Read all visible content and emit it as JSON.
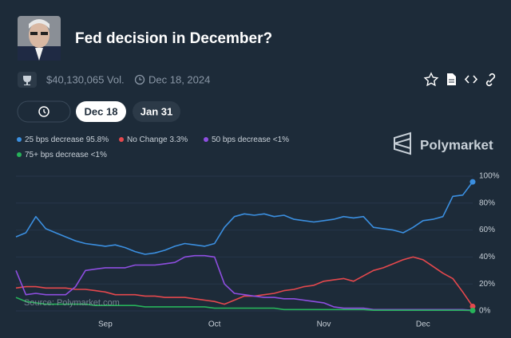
{
  "header": {
    "title": "Fed decision in December?",
    "volume": "$40,130,065 Vol.",
    "end_date": "Dec 18, 2024"
  },
  "tabs": [
    "Dec 18",
    "Jan 31"
  ],
  "brand": "Polymarket",
  "source": "Source: Polymarket.com",
  "chart_data": {
    "type": "line",
    "categories": [
      null,
      null,
      null,
      null,
      null,
      null,
      null,
      null,
      null,
      "Sep",
      null,
      null,
      null,
      null,
      null,
      null,
      null,
      null,
      null,
      null,
      "Oct",
      null,
      null,
      null,
      null,
      null,
      null,
      null,
      null,
      null,
      null,
      "Nov",
      null,
      null,
      null,
      null,
      null,
      null,
      null,
      null,
      null,
      "Dec",
      null,
      null,
      null,
      null,
      null
    ],
    "series": [
      {
        "name": "25 bps decrease",
        "legend_label": "95.8%",
        "color": "#3b8fe0",
        "end_dot": true,
        "values": [
          55,
          58,
          70,
          61,
          58,
          55,
          52,
          50,
          49,
          48,
          49,
          47,
          44,
          42,
          43,
          45,
          48,
          50,
          49,
          48,
          50,
          62,
          70,
          72,
          71,
          72,
          70,
          71,
          68,
          67,
          66,
          67,
          68,
          70,
          69,
          70,
          62,
          61,
          60,
          58,
          62,
          67,
          68,
          70,
          85,
          86,
          95.8
        ]
      },
      {
        "name": "No Change",
        "legend_label": "3.3%",
        "color": "#e5484d",
        "end_dot": true,
        "values": [
          17,
          18,
          18,
          17,
          17,
          17,
          16,
          16,
          15,
          14,
          12,
          12,
          12,
          11,
          11,
          10,
          10,
          10,
          9,
          8,
          7,
          5,
          8,
          11,
          11,
          12,
          13,
          15,
          16,
          18,
          19,
          22,
          23,
          24,
          22,
          26,
          30,
          32,
          35,
          38,
          40,
          38,
          33,
          28,
          24,
          14,
          3.3
        ]
      },
      {
        "name": "50 bps decrease",
        "legend_label": "<1%",
        "color": "#8e4ee0",
        "end_dot": false,
        "values": [
          30,
          12,
          13,
          12,
          12,
          12,
          18,
          30,
          31,
          32,
          32,
          32,
          34,
          34,
          34,
          35,
          36,
          40,
          41,
          41,
          40,
          20,
          13,
          12,
          11,
          10,
          10,
          9,
          9,
          8,
          7,
          6,
          3,
          2,
          2,
          2,
          1,
          1,
          1,
          1,
          1,
          1,
          1,
          1,
          1,
          1,
          0.5
        ]
      },
      {
        "name": "75+ bps decrease",
        "legend_label": "<1%",
        "color": "#27b35a",
        "end_dot": true,
        "values": [
          10,
          7,
          6,
          5,
          5,
          5,
          5,
          5,
          4,
          4,
          4,
          4,
          4,
          3,
          3,
          3,
          3,
          3,
          3,
          3,
          2,
          2,
          2,
          2,
          2,
          2,
          2,
          1,
          1,
          1,
          1,
          1,
          1,
          1,
          1,
          1,
          0.5,
          0.5,
          0.5,
          0.5,
          0.5,
          0.5,
          0.5,
          0.5,
          0.5,
          0.5,
          0.3
        ]
      }
    ],
    "ylim": [
      0,
      100
    ],
    "yticks": [
      {
        "value": 0,
        "label": "0%"
      },
      {
        "value": 20,
        "label": "20%"
      },
      {
        "value": 40,
        "label": "40%"
      },
      {
        "value": 60,
        "label": "60%"
      },
      {
        "value": 80,
        "label": "80%"
      },
      {
        "value": 100,
        "label": "100%"
      }
    ],
    "grid": true
  }
}
